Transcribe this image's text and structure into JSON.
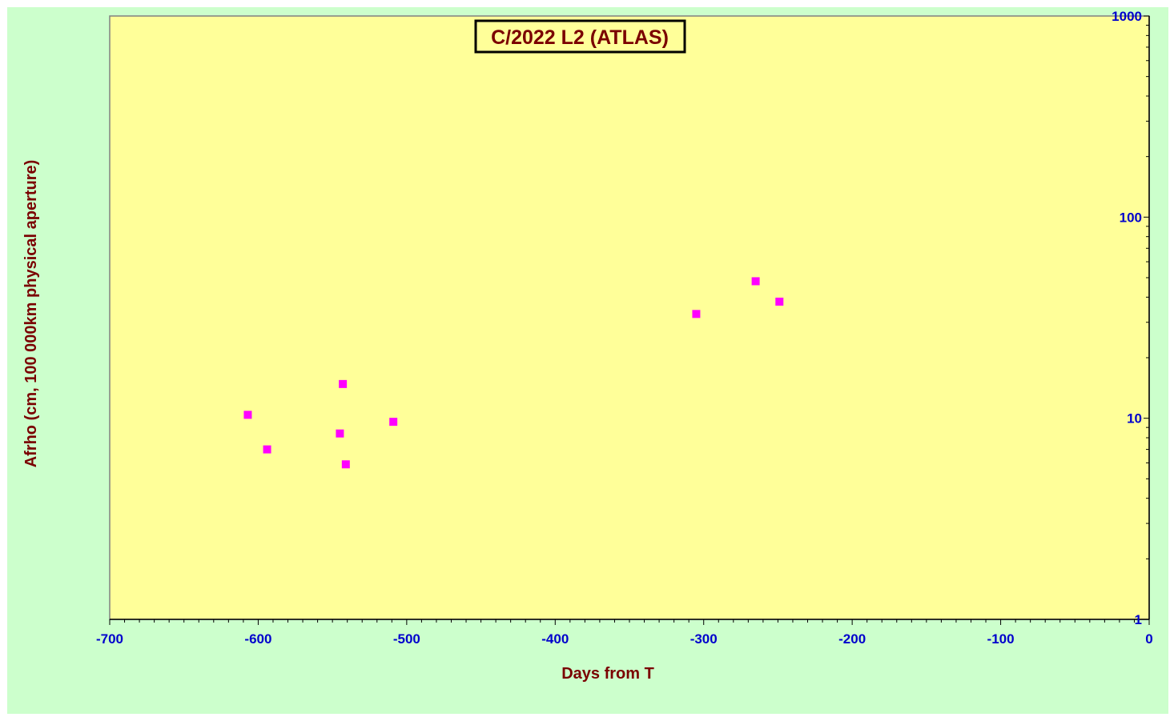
{
  "chart_data": {
    "type": "scatter",
    "title": "C/2022 L2 (ATLAS)",
    "xlabel": "Days from  T",
    "ylabel": "Afrho (cm, 100 000km physical aperture)",
    "xlim": [
      -700,
      0
    ],
    "ylim": [
      1,
      1000
    ],
    "y_scale": "log",
    "x_ticks": [
      -700,
      -600,
      -500,
      -400,
      -300,
      -200,
      -100,
      0
    ],
    "y_ticks": [
      1,
      10,
      100,
      1000
    ],
    "y_axis_side": "right",
    "grid": false,
    "legend": "none",
    "series": [
      {
        "color": "#ff00ff",
        "marker": "square",
        "points": [
          {
            "x": -607,
            "y": 10.4
          },
          {
            "x": -594,
            "y": 7.0
          },
          {
            "x": -543,
            "y": 14.8
          },
          {
            "x": -545,
            "y": 8.4
          },
          {
            "x": -541,
            "y": 5.9
          },
          {
            "x": -509,
            "y": 9.6
          },
          {
            "x": -305,
            "y": 33
          },
          {
            "x": -265,
            "y": 48
          },
          {
            "x": -249,
            "y": 38
          }
        ]
      }
    ]
  },
  "colors": {
    "background": "#ccffcc",
    "plot_area": "#ffff99",
    "axis_text": "#0000cc",
    "title_text": "#7a0000",
    "marker": "#ff00ff"
  }
}
